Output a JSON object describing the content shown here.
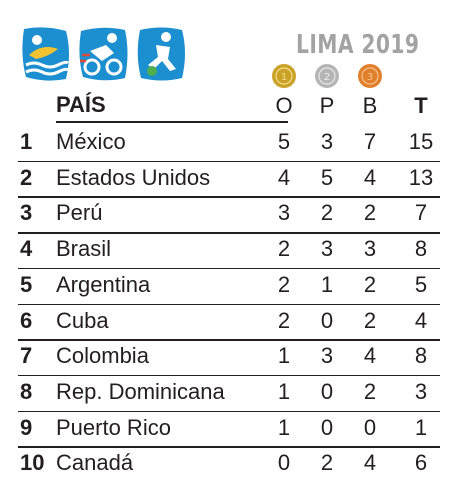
{
  "event": {
    "title": "LIMA 2019"
  },
  "pictograms": [
    {
      "icon": "swimming-pictogram-icon",
      "color": "#1c8fd0"
    },
    {
      "icon": "cycling-pictogram-icon",
      "color": "#1c8fd0"
    },
    {
      "icon": "football-pictogram-icon",
      "color": "#1c8fd0"
    }
  ],
  "medals": [
    {
      "icon": "gold-medal-icon",
      "color": "#c9a227"
    },
    {
      "icon": "silver-medal-icon",
      "color": "#b5b5b5"
    },
    {
      "icon": "bronze-medal-icon",
      "color": "#e07f2c"
    }
  ],
  "chart_data": {
    "type": "table",
    "columns": [
      "PAÍS",
      "O",
      "P",
      "B",
      "T"
    ],
    "rows": [
      {
        "rank": "1",
        "country": "México",
        "gold": 5,
        "silver": 3,
        "bronze": 7,
        "total": 15
      },
      {
        "rank": "2",
        "country": "Estados Unidos",
        "gold": 4,
        "silver": 5,
        "bronze": 4,
        "total": 13
      },
      {
        "rank": "3",
        "country": "Perú",
        "gold": 3,
        "silver": 2,
        "bronze": 2,
        "total": 7
      },
      {
        "rank": "4",
        "country": "Brasil",
        "gold": 2,
        "silver": 3,
        "bronze": 3,
        "total": 8
      },
      {
        "rank": "5",
        "country": "Argentina",
        "gold": 2,
        "silver": 1,
        "bronze": 2,
        "total": 5
      },
      {
        "rank": "6",
        "country": "Cuba",
        "gold": 2,
        "silver": 0,
        "bronze": 2,
        "total": 4
      },
      {
        "rank": "7",
        "country": "Colombia",
        "gold": 1,
        "silver": 3,
        "bronze": 4,
        "total": 8
      },
      {
        "rank": "8",
        "country": "Rep. Dominicana",
        "gold": 1,
        "silver": 0,
        "bronze": 2,
        "total": 3
      },
      {
        "rank": "9",
        "country": "Puerto Rico",
        "gold": 1,
        "silver": 0,
        "bronze": 0,
        "total": 1
      },
      {
        "rank": "10",
        "country": "Canadá",
        "gold": 0,
        "silver": 2,
        "bronze": 4,
        "total": 6
      }
    ]
  }
}
